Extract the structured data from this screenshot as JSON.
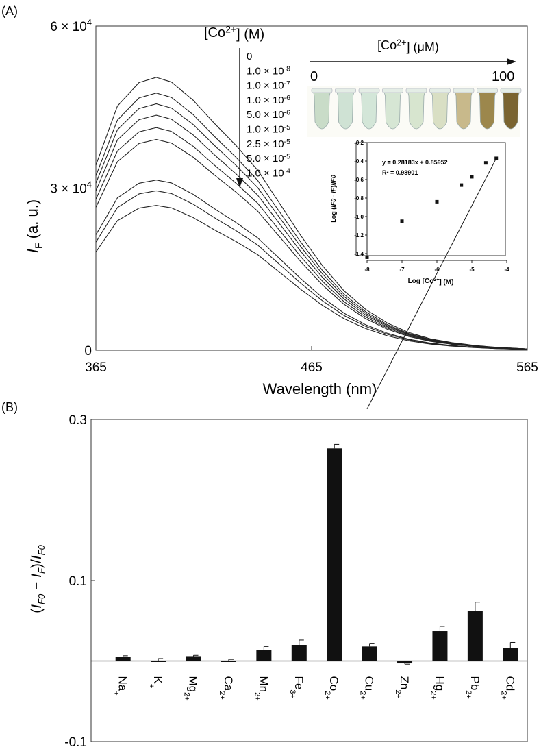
{
  "panel_a": {
    "label": "(A)",
    "legend_title": "[Co2+] (M)",
    "concentrations": [
      "0",
      "1.0 × 10-8",
      "1.0 × 10-7",
      "1.0 × 10-6",
      "5.0 × 10-6",
      "1.0 × 10-5",
      "2.5 × 10-5",
      "5.0 × 10-5",
      "1.0 × 10-4"
    ],
    "photo_axis": {
      "label": "[Co2+] (μM)",
      "start": "0",
      "end": "100"
    },
    "tube_colors": [
      "#c9dcc8",
      "#cfe2d4",
      "#d3e6d8",
      "#d6e6d4",
      "#d7e5cf",
      "#d9dfc4",
      "#c8b98b",
      "#9c874c",
      "#7a6430"
    ],
    "inset": {
      "type": "scatter",
      "xlabel": "Log [Co2+] (M)",
      "ylabel": "Log (IF0 - IF)/IF0",
      "equation": "y = 0.28183x + 0.85952",
      "r2": "R² = 0.98901",
      "xlim": [
        -8,
        -4
      ],
      "ylim": [
        -1.4,
        -0.2
      ],
      "xticks": [
        "-8",
        "-7",
        "-6",
        "-5",
        "-4"
      ],
      "yticks": [
        "-0.2",
        "-0.4",
        "-0.6",
        "-0.8",
        "-1.0",
        "-1.2",
        "-1.4"
      ],
      "points": [
        [
          -8,
          -1.44
        ],
        [
          -7,
          -1.05
        ],
        [
          -6,
          -0.84
        ],
        [
          -5.3,
          -0.66
        ],
        [
          -5,
          -0.57
        ],
        [
          -4.6,
          -0.42
        ],
        [
          -4.3,
          -0.37
        ]
      ],
      "fit": {
        "slope": 0.28183,
        "intercept": 0.85952,
        "x_range": [
          -8,
          -4.3
        ]
      }
    }
  },
  "panel_b": {
    "label": "(B)"
  },
  "chart_data": [
    {
      "type": "line",
      "title": "",
      "xlabel": "Wavelength (nm)",
      "ylabel": "IF (a. u.)",
      "xlim": [
        365,
        565
      ],
      "ylim": [
        0,
        60000
      ],
      "xticks": [
        "365",
        "465",
        "565"
      ],
      "yticks": [
        {
          "value": 0,
          "label": "0"
        },
        {
          "value": 30000,
          "label": "3 × 10^4"
        },
        {
          "value": 60000,
          "label": "6 × 10^4"
        }
      ],
      "x": [
        365,
        375,
        385,
        393,
        400,
        410,
        420,
        430,
        440,
        450,
        460,
        470,
        480,
        490,
        500,
        510,
        520,
        530,
        540,
        550,
        565
      ],
      "shape": [
        0.678,
        0.895,
        0.981,
        1.0,
        0.983,
        0.917,
        0.831,
        0.75,
        0.66,
        0.54,
        0.42,
        0.31,
        0.218,
        0.15,
        0.1,
        0.065,
        0.042,
        0.028,
        0.018,
        0.011,
        0.005
      ],
      "series": [
        {
          "name": "0",
          "peak": 50500
        },
        {
          "name": "1.0 × 10-8",
          "peak": 47600
        },
        {
          "name": "1.0 × 10-7",
          "peak": 45600
        },
        {
          "name": "1.0 × 10-6",
          "peak": 43500
        },
        {
          "name": "5.0 × 10-6",
          "peak": 41200
        },
        {
          "name": "1.0 × 10-5",
          "peak": 39000
        },
        {
          "name": "2.5 × 10-5",
          "peak": 31500
        },
        {
          "name": "5.0 × 10-5",
          "peak": 29500
        },
        {
          "name": "1.0 × 10-4",
          "peak": 26800
        }
      ]
    },
    {
      "type": "bar",
      "title": "",
      "xlabel": "",
      "ylabel": "(IF0 - IF)/IF0",
      "ylim": [
        -0.1,
        0.3
      ],
      "yticks": [
        "-0.1",
        "0.1",
        "0.3"
      ],
      "categories": [
        {
          "base": "Na",
          "charge": "+"
        },
        {
          "base": "K",
          "charge": "+"
        },
        {
          "base": "Mg",
          "charge": "2+"
        },
        {
          "base": "Ca",
          "charge": "2+"
        },
        {
          "base": "Mn",
          "charge": "2+"
        },
        {
          "base": "Fe",
          "charge": "3+"
        },
        {
          "base": "Co",
          "charge": "2+"
        },
        {
          "base": "Cu",
          "charge": "2+"
        },
        {
          "base": "Zn",
          "charge": "2+"
        },
        {
          "base": "Hg",
          "charge": "2+"
        },
        {
          "base": "Pb",
          "charge": "2+"
        },
        {
          "base": "Cd",
          "charge": "2+"
        }
      ],
      "values": [
        0.005,
        0.0,
        0.006,
        0.0,
        0.014,
        0.02,
        0.264,
        0.018,
        -0.003,
        0.037,
        0.062,
        0.016
      ],
      "errors": [
        0.0015,
        0.003,
        0.001,
        0.002,
        0.004,
        0.006,
        0.005,
        0.004,
        0.001,
        0.006,
        0.011,
        0.007
      ]
    }
  ]
}
